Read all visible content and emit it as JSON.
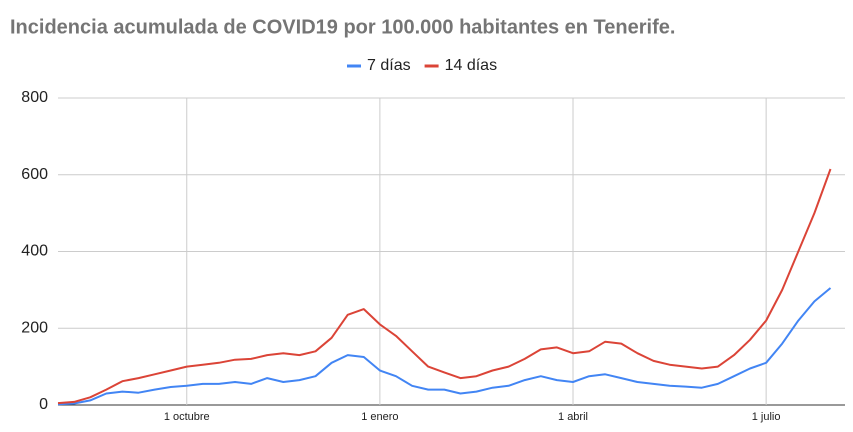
{
  "chart_data": {
    "type": "line",
    "title": "Incidencia acumulada de COVID19 por 100.000 habitantes en Tenerife.",
    "categories": [
      null,
      null,
      null,
      null,
      null,
      null,
      null,
      null,
      "1 octubre",
      null,
      null,
      null,
      null,
      null,
      null,
      null,
      null,
      null,
      null,
      null,
      "1 enero",
      null,
      null,
      null,
      null,
      null,
      null,
      null,
      null,
      null,
      null,
      null,
      "1 abril",
      null,
      null,
      null,
      null,
      null,
      null,
      null,
      null,
      null,
      null,
      null,
      "1 julio",
      null,
      null,
      null,
      null
    ],
    "series": [
      {
        "name": "7 días",
        "color": "#4285f4",
        "values": [
          2,
          4,
          12,
          30,
          35,
          32,
          40,
          47,
          50,
          55,
          55,
          60,
          55,
          70,
          60,
          65,
          75,
          110,
          130,
          125,
          90,
          75,
          50,
          40,
          40,
          30,
          35,
          45,
          50,
          65,
          75,
          65,
          60,
          75,
          80,
          70,
          60,
          55,
          50,
          48,
          45,
          55,
          75,
          95,
          110,
          160,
          220,
          270,
          305
        ]
      },
      {
        "name": "14 días",
        "color": "#db4437",
        "values": [
          5,
          8,
          20,
          40,
          62,
          70,
          80,
          90,
          100,
          105,
          110,
          118,
          120,
          130,
          135,
          130,
          140,
          175,
          235,
          250,
          210,
          180,
          140,
          100,
          85,
          70,
          75,
          90,
          100,
          120,
          145,
          150,
          135,
          140,
          165,
          160,
          135,
          115,
          105,
          100,
          95,
          100,
          130,
          170,
          220,
          300,
          400,
          500,
          615
        ]
      }
    ],
    "ylim": [
      0,
      800
    ],
    "yticks": [
      0,
      200,
      400,
      600,
      800
    ],
    "grid": true
  }
}
